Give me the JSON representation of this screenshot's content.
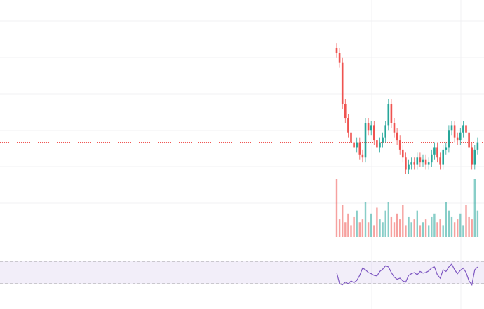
{
  "chart_data": {
    "type": "candlestick",
    "open": [
      80,
      78,
      74,
      57,
      51,
      45,
      41,
      39,
      41,
      36,
      35,
      49,
      46,
      48,
      42,
      39,
      41,
      43,
      48,
      57,
      49,
      45,
      42,
      38,
      35,
      30,
      32,
      33,
      32,
      35,
      33,
      34,
      32,
      33,
      36,
      39,
      35,
      32,
      38,
      39,
      46,
      48,
      43,
      42,
      45,
      48,
      45,
      39,
      32,
      38
    ],
    "high": [
      82,
      80,
      76,
      59,
      53,
      47,
      43,
      43,
      43,
      38,
      51,
      51,
      50,
      50,
      44,
      43,
      45,
      50,
      59,
      59,
      51,
      47,
      44,
      40,
      37,
      34,
      35,
      35,
      37,
      37,
      36,
      36,
      35,
      38,
      41,
      41,
      37,
      40,
      41,
      48,
      50,
      50,
      45,
      47,
      50,
      50,
      47,
      41,
      40,
      43
    ],
    "low": [
      76,
      72,
      55,
      49,
      43,
      39,
      37,
      37,
      34,
      33,
      33,
      44,
      44,
      40,
      37,
      37,
      39,
      41,
      46,
      47,
      43,
      40,
      36,
      33,
      28,
      28,
      30,
      30,
      30,
      31,
      31,
      30,
      30,
      31,
      34,
      33,
      30,
      30,
      36,
      37,
      44,
      41,
      40,
      40,
      43,
      43,
      37,
      30,
      30,
      36
    ],
    "close": [
      78,
      74,
      57,
      51,
      45,
      41,
      39,
      41,
      36,
      35,
      49,
      46,
      48,
      42,
      39,
      41,
      43,
      48,
      57,
      49,
      45,
      42,
      38,
      35,
      30,
      32,
      33,
      32,
      35,
      33,
      34,
      32,
      33,
      36,
      39,
      35,
      32,
      38,
      39,
      46,
      48,
      43,
      42,
      45,
      48,
      45,
      39,
      32,
      38,
      41
    ],
    "ylim": [
      0,
      100
    ],
    "volume": [
      100,
      30,
      55,
      25,
      40,
      20,
      35,
      45,
      25,
      30,
      60,
      25,
      40,
      20,
      50,
      30,
      25,
      45,
      60,
      35,
      25,
      40,
      30,
      55,
      20,
      35,
      25,
      30,
      45,
      20,
      25,
      30,
      20,
      35,
      40,
      25,
      30,
      20,
      60,
      45,
      35,
      25,
      30,
      40,
      20,
      55,
      35,
      30,
      100,
      45
    ],
    "volume_ylim": [
      0,
      100
    ],
    "rsi": [
      50,
      30,
      28,
      33,
      30,
      35,
      32,
      36,
      45,
      58,
      55,
      50,
      48,
      45,
      44,
      52,
      56,
      62,
      60,
      50,
      42,
      38,
      40,
      35,
      33,
      45,
      48,
      50,
      46,
      52,
      49,
      50,
      53,
      58,
      60,
      46,
      40,
      55,
      52,
      60,
      65,
      55,
      48,
      54,
      58,
      50,
      35,
      28,
      55,
      60
    ],
    "rsi_ylim": [
      0,
      100
    ],
    "rsi_levels": [
      30,
      70
    ],
    "up_color": "#26a69a",
    "down_color": "#ef5350",
    "rsi_color": "#7e57c2"
  }
}
